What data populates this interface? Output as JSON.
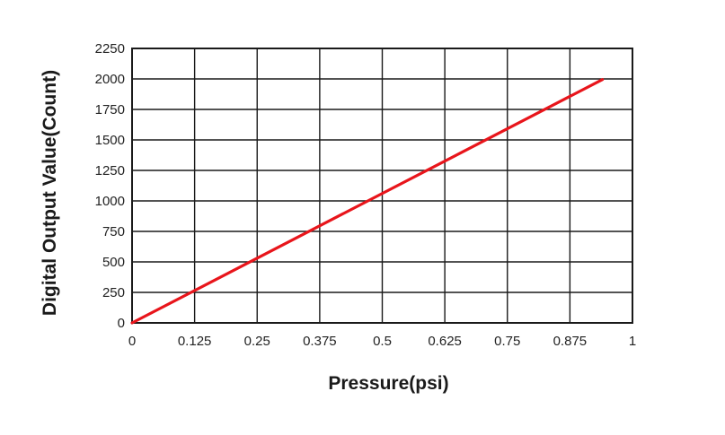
{
  "colors": {
    "line": "#e8151b",
    "grid": "#1a1a1a",
    "background": "#ffffff",
    "text": "#222222"
  },
  "chart_data": {
    "type": "line",
    "title": "",
    "xlabel": "Pressure(psi)",
    "ylabel": "Digital Output Value(Count)",
    "xlim": [
      0,
      1
    ],
    "ylim": [
      0,
      2250
    ],
    "x_ticks": [
      0,
      0.125,
      0.25,
      0.375,
      0.5,
      0.625,
      0.75,
      0.875,
      1
    ],
    "x_tick_labels": [
      "0",
      "0.125",
      "0.25",
      "0.375",
      "0.5",
      "0.625",
      "0.75",
      "0.875",
      "1"
    ],
    "y_ticks": [
      0,
      250,
      500,
      750,
      1000,
      1250,
      1500,
      1750,
      2000,
      2250
    ],
    "y_tick_labels": [
      "0",
      "250",
      "500",
      "750",
      "1000",
      "1250",
      "1500",
      "1750",
      "2000",
      "2250"
    ],
    "grid": true,
    "legend": "none",
    "series": [
      {
        "x": [
          0,
          0.94
        ],
        "y": [
          0,
          1995
        ]
      }
    ]
  }
}
